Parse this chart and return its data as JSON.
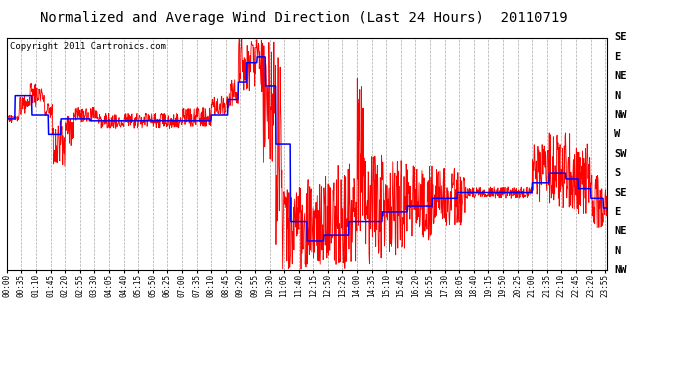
{
  "title": "Normalized and Average Wind Direction (Last 24 Hours)  20110719",
  "copyright": "Copyright 2011 Cartronics.com",
  "background_color": "#ffffff",
  "plot_bg_color": "#ffffff",
  "grid_color": "#aaaaaa",
  "y_labels": [
    "SE",
    "E",
    "NE",
    "N",
    "NW",
    "W",
    "SW",
    "S",
    "SE",
    "E",
    "NE",
    "N",
    "NW"
  ],
  "red_line_color": "#ff0000",
  "blue_line_color": "#0000ff",
  "title_fontsize": 10,
  "copyright_fontsize": 6.5,
  "ytick_fontsize": 7.5,
  "xtick_fontsize": 5.5
}
